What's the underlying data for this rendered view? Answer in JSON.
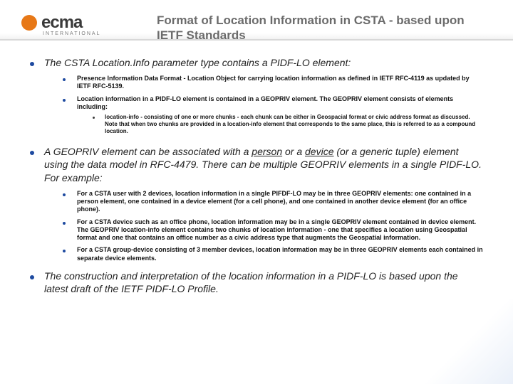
{
  "logo": {
    "brand": "ecma",
    "sub": "INTERNATIONAL"
  },
  "title": "Format of Location Information in CSTA - based upon IETF Standards",
  "colors": {
    "accent": "#e77817",
    "bullet": "#1e4aa0",
    "title": "#6b6b6b"
  },
  "b1": {
    "p1": "The CSTA Location.Info parameter type contains a PIDF-LO element:",
    "p2_pre": "A GEOPRIV element can be associated with a ",
    "p2_u1": "person",
    "p2_mid": " or a ",
    "p2_u2": "device",
    "p2_post": " (or a generic tuple) element using the data model in RFC-4479. There can be multiple GEOPRIV elements in a single PIDF-LO. For example:",
    "p3": "The construction and interpretation of the location information in a PIDF-LO is based upon the latest draft of the IETF PIDF-LO Profile."
  },
  "b2a": {
    "i1": "Presence Information Data Format - Location Object for carrying location information as defined in IETF RFC-4119 as updated by IETF RFC-5139.",
    "i2": "Location information in a PIDF-LO element is contained in a GEOPRIV element. The GEOPRIV element consists of elements including:"
  },
  "b3": {
    "i1": "location-info - consisting of one or more chunks - each chunk can be either in Geospacial format or civic address format as discussed. Note that when two chunks are provided in a location-info element that corresponds to the same place, this is referred to as a compound location."
  },
  "b2b": {
    "i1": "For a CSTA user with 2 devices, location information in a single PIFDF-LO may be in three GEOPRIV elements: one contained in a person element, one contained in a device element (for a cell phone), and one contained in another device element (for an office phone).",
    "i2": "For a CSTA device such as an office phone, location information may be in a single GEOPRIV element contained in device element. The GEOPRIV location-info element contains two chunks of location information - one that specifies a location using Geospatial format and one that contains an office number as a civic address type that augments the Geospatial information.",
    "i3": "For a CSTA group-device consisting of 3 member devices, location information may be in three GEOPRIV elements each contained in separate device elements."
  }
}
